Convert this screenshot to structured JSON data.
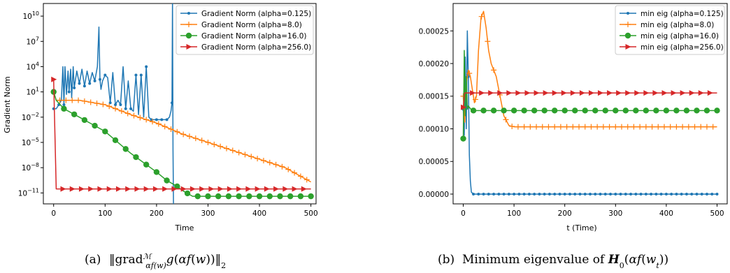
{
  "chart_data": [
    {
      "type": "line",
      "caption_prefix": "(a)",
      "xlabel": "Time",
      "ylabel": "Gradient Norm",
      "xlim": [
        -20,
        510
      ],
      "yscale": "log",
      "ylim_log10": [
        -12.3,
        11.5
      ],
      "xticks": [
        0,
        100,
        200,
        300,
        400,
        500
      ],
      "yticks": [
        {
          "exp": 10,
          "label": "10",
          "sup": "10"
        },
        {
          "exp": 7,
          "label": "10",
          "sup": "7"
        },
        {
          "exp": 4,
          "label": "10",
          "sup": "4"
        },
        {
          "exp": 1,
          "label": "10",
          "sup": "1"
        },
        {
          "exp": -2,
          "label": "10",
          "sup": "−2"
        },
        {
          "exp": -5,
          "label": "10",
          "sup": "−5"
        },
        {
          "exp": -8,
          "label": "10",
          "sup": "−8"
        },
        {
          "exp": -11,
          "label": "10",
          "sup": "−11"
        }
      ],
      "legend_position": "top-right",
      "series": [
        {
          "name": "Gradient Norm (alpha=0.125)",
          "color": "#1f77b4",
          "marker": "dot",
          "x": [
            0,
            5,
            10,
            15,
            18,
            20,
            22,
            25,
            28,
            30,
            33,
            35,
            38,
            40,
            45,
            50,
            55,
            60,
            65,
            70,
            75,
            80,
            85,
            88,
            90,
            92,
            95,
            100,
            105,
            110,
            115,
            120,
            125,
            130,
            135,
            140,
            145,
            150,
            155,
            160,
            165,
            170,
            175,
            180,
            185,
            190,
            195,
            200,
            205,
            210,
            215,
            220,
            225,
            228,
            230,
            231,
            232,
            233,
            234
          ],
          "y": [
            0.1,
            0.1,
            0.3,
            1,
            10000.0,
            0.3,
            10000.0,
            5,
            3000.0,
            10,
            5000.0,
            2,
            10000.0,
            30,
            3000.0,
            100,
            5000.0,
            50,
            3000.0,
            100,
            2000.0,
            200,
            10000.0,
            500000000.0,
            300,
            20,
            200,
            1000.0,
            500,
            0.5,
            2000.0,
            0.3,
            1,
            0.3,
            10000.0,
            0.1,
            200.0,
            0.1,
            0.05,
            1000.0,
            0.02,
            1000.0,
            0.01,
            10000.0,
            0.01,
            0.005,
            0.005,
            0.005,
            0.005,
            0.005,
            0.005,
            0.005,
            0.01,
            0.05,
            0.5,
            1000000000000.0,
            1e-06,
            1e-13,
            1e-13
          ]
        },
        {
          "name": "Gradient Norm (alpha=8.0)",
          "color": "#ff7f0e",
          "marker": "plus",
          "x": [
            0,
            5,
            20,
            50,
            100,
            150,
            200,
            250,
            300,
            350,
            400,
            450,
            500
          ],
          "y": [
            10,
            1,
            1,
            1,
            0.3,
            0.02,
            0.002,
            0.0001,
            1e-05,
            1e-06,
            1e-07,
            1e-08,
            2e-10
          ]
        },
        {
          "name": "Gradient Norm (alpha=16.0)",
          "color": "#2ca02c",
          "marker": "circle",
          "x": [
            0,
            5,
            20,
            50,
            100,
            150,
            200,
            220,
            240,
            250,
            270,
            300,
            350,
            400,
            450,
            500
          ],
          "y": [
            10,
            1,
            0.1,
            0.01,
            0.0002,
            5e-07,
            3e-09,
            3e-10,
            6e-11,
            2e-11,
            4e-12,
            4e-12,
            4e-12,
            4e-12,
            4e-12,
            4e-12
          ]
        },
        {
          "name": "Gradient Norm (alpha=256.0)",
          "color": "#d62728",
          "marker": "triangle",
          "x": [
            0,
            5,
            50,
            100,
            150,
            200,
            250,
            300,
            350,
            400,
            450,
            500
          ],
          "y": [
            300,
            3e-11,
            3e-11,
            3e-11,
            3e-11,
            3e-11,
            3e-11,
            3e-11,
            3e-11,
            3e-11,
            3e-11,
            3e-11
          ]
        }
      ]
    },
    {
      "type": "line",
      "caption_prefix": "(b)",
      "xlabel": "t (Time)",
      "ylabel": "Minimum eigenvalue of H_0(alpha f(w_t))",
      "xlim": [
        -20,
        520
      ],
      "ylim": [
        -1.5e-05,
        0.000292
      ],
      "xticks": [
        0,
        100,
        200,
        300,
        400,
        500
      ],
      "yticks": [
        0.0,
        5e-05,
        0.0001,
        0.00015,
        0.0002,
        0.00025
      ],
      "ytick_labels": [
        "0.00000",
        "0.00005",
        "0.00010",
        "0.00015",
        "0.00020",
        "0.00025"
      ],
      "legend_position": "top-right",
      "series": [
        {
          "name": "min eig (alpha=0.125)",
          "color": "#1f77b4",
          "marker": "dot",
          "x": [
            0,
            2,
            4,
            6,
            8,
            10,
            12,
            14,
            16,
            20,
            30,
            50,
            100,
            200,
            300,
            400,
            500
          ],
          "y": [
            0.00013,
            9e-05,
            0.00021,
            0.0001,
            0.00025,
            0.00018,
            6e-05,
            2e-05,
            3e-06,
            0.0,
            0.0,
            0.0,
            0.0,
            0.0,
            0.0,
            0.0,
            0.0
          ]
        },
        {
          "name": "min eig (alpha=8.0)",
          "color": "#ff7f0e",
          "marker": "plus",
          "x": [
            0,
            3,
            6,
            10,
            14,
            18,
            22,
            26,
            30,
            35,
            40,
            45,
            50,
            55,
            60,
            65,
            70,
            75,
            80,
            90,
            100,
            120,
            200,
            300,
            400,
            500
          ],
          "y": [
            0.00015,
            0.00011,
            0.00017,
            0.00019,
            0.00018,
            0.00016,
            0.00014,
            0.00015,
            0.00022,
            0.00027,
            0.00028,
            0.000255,
            0.00022,
            0.0002,
            0.00019,
            0.00018,
            0.00016,
            0.00014,
            0.00012,
            0.000105,
            0.000103,
            0.000103,
            0.000103,
            0.000103,
            0.000103,
            0.000103
          ]
        },
        {
          "name": "min eig (alpha=16.0)",
          "color": "#2ca02c",
          "marker": "circle",
          "x": [
            0,
            2,
            4,
            6,
            8,
            10,
            15,
            20,
            50,
            100,
            200,
            300,
            400,
            500
          ],
          "y": [
            8.5e-05,
            0.00022,
            0.00012,
            0.00018,
            0.00013,
            0.000135,
            0.00013,
            0.000128,
            0.000128,
            0.000128,
            0.000128,
            0.000128,
            0.000128,
            0.000128
          ]
        },
        {
          "name": "min eig (alpha=256.0)",
          "color": "#d62728",
          "marker": "triangle",
          "x": [
            0,
            3,
            6,
            100,
            200,
            300,
            400,
            500
          ],
          "y": [
            0.000133,
            0.000155,
            0.000155,
            0.000155,
            0.000155,
            0.000155,
            0.000155,
            0.000155
          ]
        }
      ]
    }
  ]
}
